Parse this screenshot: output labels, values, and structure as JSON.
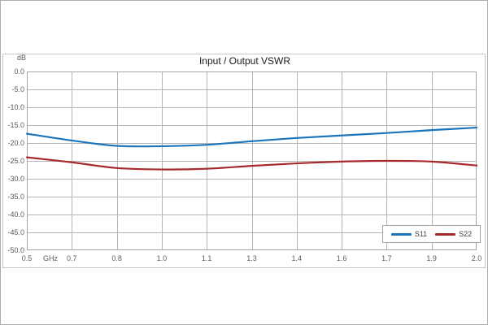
{
  "chart_data": {
    "type": "line",
    "title": "Input / Output VSWR",
    "xlabel": "GHz",
    "ylabel": "dB",
    "xlim": [
      0.5,
      2.0
    ],
    "ylim": [
      -50.0,
      0.0
    ],
    "grid": true,
    "legend_position": "inside-bottom-right",
    "x_ticks": {
      "values": [
        0.5,
        0.65,
        0.8,
        0.95,
        1.1,
        1.25,
        1.4,
        1.55,
        1.7,
        1.85,
        2.0
      ],
      "labels": [
        "0.5",
        "0.7",
        "0.8",
        "1.0",
        "1.1",
        "1.3",
        "1.4",
        "1.6",
        "1.7",
        "1.9",
        "2.0"
      ]
    },
    "y_ticks": {
      "values": [
        0,
        -5,
        -10,
        -15,
        -20,
        -25,
        -30,
        -35,
        -40,
        -45,
        -50
      ],
      "labels": [
        "0.0",
        "-5.0",
        "-10.0",
        "-15.0",
        "-20.0",
        "-25.0",
        "-30.0",
        "-35.0",
        "-40.0",
        "-45.0",
        "-50.0"
      ]
    },
    "x": [
      0.5,
      0.65,
      0.8,
      0.95,
      1.1,
      1.25,
      1.4,
      1.55,
      1.7,
      1.85,
      2.0
    ],
    "series": [
      {
        "name": "S11",
        "color": "#1a75bc",
        "values": [
          -17.4,
          -19.3,
          -20.8,
          -20.9,
          -20.5,
          -19.5,
          -18.6,
          -17.9,
          -17.2,
          -16.4,
          -15.7
        ]
      },
      {
        "name": "S22",
        "color": "#a62a2c",
        "values": [
          -24.0,
          -25.4,
          -27.0,
          -27.4,
          -27.2,
          -26.4,
          -25.7,
          -25.2,
          -25.0,
          -25.2,
          -26.3
        ]
      }
    ],
    "colors": {
      "grid": "#b5b5b5",
      "plot_border": "#a6a6a6",
      "tick_text": "#595959"
    }
  }
}
